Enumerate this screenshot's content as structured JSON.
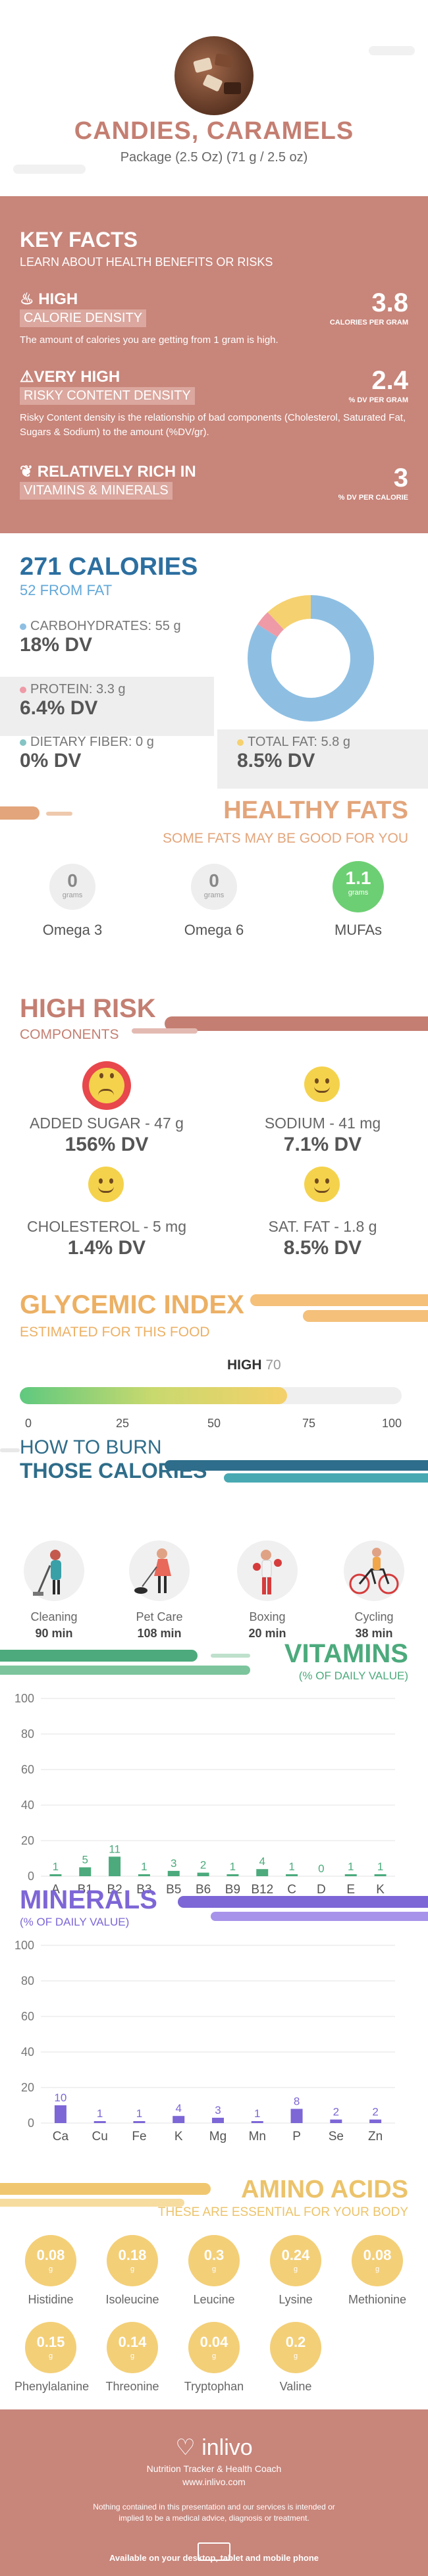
{
  "header": {
    "title": "CANDIES, CARAMELS",
    "subtitle": "Package (2.5 Oz) (71 g / 2.5 oz)"
  },
  "key_facts": {
    "title": "KEY FACTS",
    "subtitle": "LEARN ABOUT HEALTH BENEFITS OR RISKS",
    "items": [
      {
        "level": "HIGH",
        "name": "CALORIE DENSITY",
        "desc": "The amount of calories you are getting from 1 gram is high.",
        "value": "3.8",
        "unit": "CALORIES PER GRAM"
      },
      {
        "level": "VERY HIGH",
        "name": "RISKY CONTENT DENSITY",
        "desc": "Risky Content density is the relationship of bad components (Cholesterol, Saturated Fat, Sugars & Sodium) to the amount (%DV/gr).",
        "value": "2.4",
        "unit": "% DV PER GRAM"
      },
      {
        "level": "RELATIVELY RICH IN",
        "name": "VITAMINS & MINERALS",
        "desc": "",
        "value": "3",
        "unit": "% DV PER CALORIE"
      }
    ]
  },
  "calories": {
    "title": "271 CALORIES",
    "from_fat": "52 FROM FAT",
    "macros": [
      {
        "label": "CARBOHYDRATES: 55 g",
        "dv": "18% DV",
        "color": "#8ebfe3",
        "percent": 84
      },
      {
        "label": "PROTEIN: 3.3 g",
        "dv": "6.4% DV",
        "color": "#ef9aa7",
        "percent": 4
      },
      {
        "label": "DIETARY FIBER: 0 g",
        "dv": "0% DV",
        "color": "#85c4c4",
        "percent": 0
      },
      {
        "label": "TOTAL FAT: 5.8 g",
        "dv": "8.5% DV",
        "color": "#f5d16f",
        "percent": 12
      }
    ]
  },
  "healthy_fats": {
    "title": "HEALTHY FATS",
    "subtitle": "SOME FATS MAY BE GOOD FOR YOU",
    "items": [
      {
        "value": "0",
        "unit": "grams",
        "label": "Omega 3"
      },
      {
        "value": "0",
        "unit": "grams",
        "label": "Omega 6"
      },
      {
        "value": "1.1",
        "unit": "grams",
        "label": "MUFAs"
      }
    ]
  },
  "high_risk": {
    "title": "HIGH RISK",
    "subtitle": "COMPONENTS",
    "items": [
      {
        "label": "ADDED SUGAR - 47 g",
        "dv": "156% DV"
      },
      {
        "label": "SODIUM - 41 mg",
        "dv": "7.1% DV"
      },
      {
        "label": "CHOLESTEROL - 5 mg",
        "dv": "1.4% DV"
      },
      {
        "label": "SAT. FAT - 1.8 g",
        "dv": "8.5% DV"
      }
    ]
  },
  "glycemic": {
    "title": "GLYCEMIC INDEX",
    "subtitle": "ESTIMATED FOR THIS FOOD",
    "level": "HIGH",
    "value": "70",
    "value_num": 70,
    "ticks": [
      "0",
      "25",
      "50",
      "75",
      "100"
    ]
  },
  "burn": {
    "title_line1": "HOW TO BURN",
    "title_line2": "THOSE CALORIES",
    "activities": [
      {
        "name": "Cleaning",
        "time": "90 min",
        "icon": "cleaning-icon"
      },
      {
        "name": "Pet Care",
        "time": "108 min",
        "icon": "pet-care-icon"
      },
      {
        "name": "Boxing",
        "time": "20 min",
        "icon": "boxing-icon"
      },
      {
        "name": "Cycling",
        "time": "38 min",
        "icon": "cycling-icon"
      }
    ]
  },
  "vitamins": {
    "title": "VITAMINS",
    "subtitle": "(% OF DAILY VALUE)",
    "color": "#4caa7c"
  },
  "minerals": {
    "title": "MINERALS",
    "subtitle": "(% OF DAILY VALUE)",
    "color": "#7d66d6"
  },
  "chart_data": [
    {
      "type": "bar",
      "title": "VITAMINS",
      "ylabel": "(% OF DAILY VALUE)",
      "categories": [
        "A",
        "B1",
        "B2",
        "B3",
        "B5",
        "B6",
        "B9",
        "B12",
        "C",
        "D",
        "E",
        "K"
      ],
      "values": [
        1,
        5,
        11,
        1,
        3,
        2,
        1,
        4,
        1,
        0,
        1,
        1
      ],
      "yticks": [
        "0",
        "20",
        "40",
        "60",
        "80",
        "100"
      ],
      "ylim": [
        0,
        100
      ]
    },
    {
      "type": "bar",
      "title": "MINERALS",
      "ylabel": "(% OF DAILY VALUE)",
      "categories": [
        "Ca",
        "Cu",
        "Fe",
        "K",
        "Mg",
        "Mn",
        "P",
        "Se",
        "Zn"
      ],
      "values": [
        10,
        1,
        1,
        4,
        3,
        1,
        8,
        2,
        2
      ],
      "yticks": [
        "0",
        "20",
        "40",
        "60",
        "80",
        "100"
      ],
      "ylim": [
        0,
        100
      ]
    }
  ],
  "amino": {
    "title": "AMINO ACIDS",
    "subtitle": "THESE ARE ESSENTIAL FOR YOUR BODY",
    "unit": "g",
    "items": [
      {
        "value": "0.08",
        "name": "Histidine"
      },
      {
        "value": "0.18",
        "name": "Isoleucine"
      },
      {
        "value": "0.3",
        "name": "Leucine"
      },
      {
        "value": "0.24",
        "name": "Lysine"
      },
      {
        "value": "0.08",
        "name": "Methionine"
      },
      {
        "value": "0.15",
        "name": "Phenylalanine"
      },
      {
        "value": "0.14",
        "name": "Threonine"
      },
      {
        "value": "0.04",
        "name": "Tryptophan"
      },
      {
        "value": "0.2",
        "name": "Valine"
      }
    ]
  },
  "footer": {
    "brand": "inlivo",
    "tagline": "Nutrition Tracker & Health Coach",
    "site": "www.inlivo.com",
    "disclaimer": "Nothing contained in this presentation and our services is intended or implied to be a medical advice, diagnosis or treatment.",
    "available": "Available on your desktop, tablet and mobile phone"
  }
}
